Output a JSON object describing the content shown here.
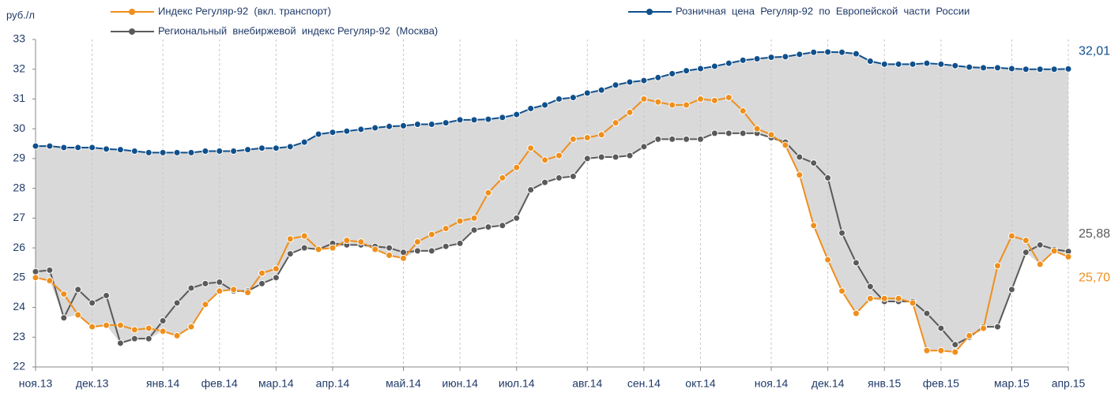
{
  "chart_data": {
    "type": "line",
    "y_label": "руб./л",
    "categories": [
      "ноя.13",
      null,
      null,
      null,
      "дек.13",
      null,
      null,
      null,
      null,
      "янв.14",
      null,
      null,
      null,
      "фев.14",
      null,
      null,
      null,
      "мар.14",
      null,
      null,
      null,
      "апр.14",
      null,
      null,
      null,
      null,
      "май.14",
      null,
      null,
      null,
      "июн.14",
      null,
      null,
      null,
      "июл.14",
      null,
      null,
      null,
      null,
      "авг.14",
      null,
      null,
      null,
      "сен.14",
      null,
      null,
      null,
      "окт.14",
      null,
      null,
      null,
      null,
      "ноя.14",
      null,
      null,
      null,
      "дек.14",
      null,
      null,
      null,
      "янв.15",
      null,
      null,
      null,
      "фев.15",
      null,
      null,
      null,
      null,
      "мар.15",
      null,
      null,
      null,
      "апр.15"
    ],
    "series": [
      {
        "name": "Индекс Регуляр-92  (вкл. транспорт)",
        "color": "#ef8f1c",
        "values": [
          25.0,
          24.9,
          24.45,
          23.75,
          23.35,
          23.4,
          23.4,
          23.25,
          23.3,
          23.2,
          23.05,
          23.35,
          24.1,
          24.55,
          24.6,
          24.5,
          25.15,
          25.3,
          26.3,
          26.4,
          25.95,
          26.0,
          26.25,
          26.2,
          25.95,
          25.75,
          25.65,
          26.2,
          26.45,
          26.65,
          26.9,
          27.0,
          27.85,
          28.35,
          28.7,
          29.35,
          28.95,
          29.1,
          29.65,
          29.7,
          29.8,
          30.2,
          30.55,
          31.0,
          30.9,
          30.8,
          30.8,
          31.0,
          30.95,
          31.05,
          30.6,
          30.0,
          29.8,
          29.45,
          28.45,
          26.75,
          25.6,
          24.55,
          23.8,
          24.3,
          24.3,
          24.3,
          24.15,
          22.55,
          22.55,
          22.5,
          23.05,
          23.3,
          25.4,
          26.4,
          26.25,
          25.45,
          25.9,
          25.7
        ],
        "value_labels": [
          null,
          null,
          null,
          null,
          null,
          null,
          null,
          null,
          null,
          null,
          null,
          null,
          null,
          null,
          null,
          null,
          null,
          null,
          null,
          null,
          null,
          null,
          null,
          null,
          null,
          null,
          null,
          null,
          null,
          null,
          null,
          null,
          null,
          null,
          null,
          null,
          null,
          null,
          null,
          null,
          null,
          null,
          null,
          null,
          null,
          null,
          null,
          null,
          null,
          null,
          null,
          null,
          null,
          null,
          null,
          null,
          null,
          null,
          null,
          null,
          null,
          null,
          null,
          null,
          null,
          null,
          null,
          null,
          null,
          null,
          null,
          null,
          null,
          "25,70"
        ]
      },
      {
        "name": "Региональный  внебиржевой  индекс Регуляр-92  (Москва)",
        "color": "#5a5a5a",
        "values": [
          25.2,
          25.25,
          23.65,
          24.6,
          24.15,
          24.4,
          22.8,
          22.95,
          22.95,
          23.55,
          24.15,
          24.65,
          24.8,
          24.85,
          24.55,
          24.55,
          24.8,
          25.0,
          25.8,
          26.0,
          25.95,
          26.15,
          26.1,
          26.1,
          26.05,
          26.0,
          25.85,
          25.9,
          25.9,
          26.05,
          26.15,
          26.6,
          26.7,
          26.75,
          27.0,
          27.95,
          28.2,
          28.35,
          28.4,
          29.0,
          29.05,
          29.05,
          29.1,
          29.4,
          29.65,
          29.65,
          29.65,
          29.65,
          29.85,
          29.85,
          29.85,
          29.85,
          29.7,
          29.55,
          29.05,
          28.85,
          28.35,
          26.5,
          25.5,
          24.7,
          24.2,
          24.2,
          24.2,
          23.8,
          23.3,
          22.75,
          23.0,
          23.35,
          23.35,
          24.6,
          25.85,
          26.1,
          25.95,
          25.88
        ],
        "value_labels": [
          null,
          null,
          null,
          null,
          null,
          null,
          null,
          null,
          null,
          null,
          null,
          null,
          null,
          null,
          null,
          null,
          null,
          null,
          null,
          null,
          null,
          null,
          null,
          null,
          null,
          null,
          null,
          null,
          null,
          null,
          null,
          null,
          null,
          null,
          null,
          null,
          null,
          null,
          null,
          null,
          null,
          null,
          null,
          null,
          null,
          null,
          null,
          null,
          null,
          null,
          null,
          null,
          null,
          null,
          null,
          null,
          null,
          null,
          null,
          null,
          null,
          null,
          null,
          null,
          null,
          null,
          null,
          null,
          null,
          null,
          null,
          null,
          null,
          "25,88"
        ]
      },
      {
        "name": "Розничная  цена  Регуляр-92  по  Европейской  части  России",
        "color": "#10508c",
        "values": [
          29.42,
          29.42,
          29.37,
          29.37,
          29.37,
          29.32,
          29.3,
          29.25,
          29.2,
          29.2,
          29.2,
          29.2,
          29.25,
          29.25,
          29.25,
          29.3,
          29.35,
          29.35,
          29.4,
          29.55,
          29.82,
          29.88,
          29.92,
          29.98,
          30.03,
          30.08,
          30.1,
          30.15,
          30.15,
          30.2,
          30.3,
          30.3,
          30.32,
          30.38,
          30.48,
          30.68,
          30.8,
          31.0,
          31.05,
          31.2,
          31.3,
          31.47,
          31.57,
          31.62,
          31.72,
          31.85,
          31.95,
          32.02,
          32.1,
          32.2,
          32.3,
          32.35,
          32.4,
          32.42,
          32.5,
          32.57,
          32.58,
          32.57,
          32.52,
          32.27,
          32.17,
          32.17,
          32.17,
          32.2,
          32.17,
          32.12,
          32.07,
          32.05,
          32.05,
          32.02,
          32.0,
          32.0,
          32.0,
          32.01
        ],
        "value_labels": [
          null,
          null,
          null,
          null,
          null,
          null,
          null,
          null,
          null,
          null,
          null,
          null,
          null,
          null,
          null,
          null,
          null,
          null,
          null,
          null,
          null,
          null,
          null,
          null,
          null,
          null,
          null,
          null,
          null,
          null,
          null,
          null,
          null,
          null,
          null,
          null,
          null,
          null,
          null,
          null,
          null,
          null,
          null,
          null,
          null,
          null,
          null,
          null,
          null,
          null,
          null,
          null,
          null,
          null,
          null,
          null,
          null,
          null,
          null,
          null,
          null,
          null,
          null,
          null,
          null,
          null,
          null,
          null,
          null,
          null,
          null,
          null,
          null,
          "32,01"
        ]
      }
    ],
    "ylim": [
      22,
      33
    ],
    "yticks": [
      22,
      23,
      24,
      25,
      26,
      27,
      28,
      29,
      30,
      31,
      32,
      33
    ],
    "grid": true,
    "area_color": "#d9d9d9"
  }
}
